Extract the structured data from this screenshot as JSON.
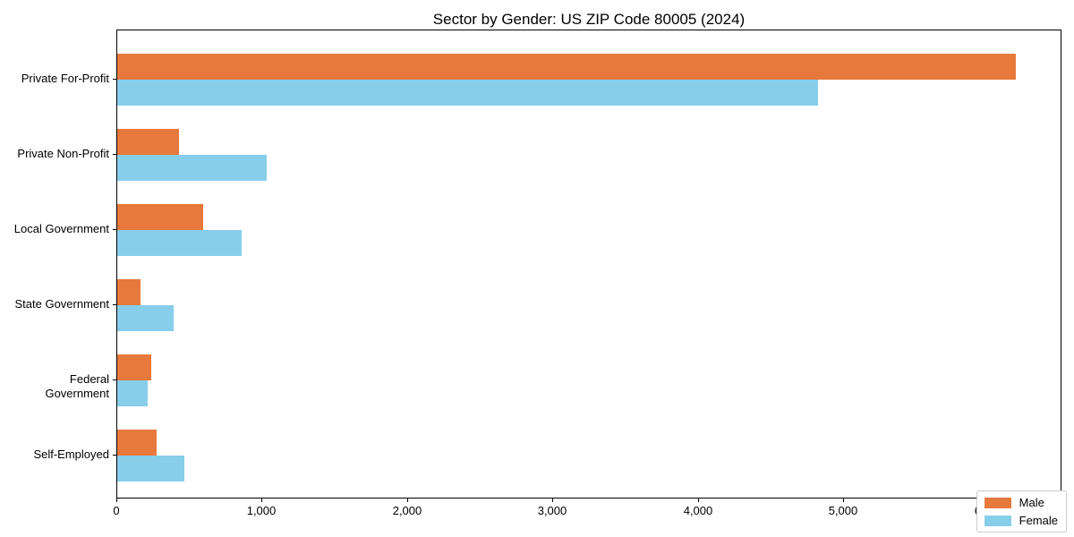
{
  "chart_data": {
    "type": "bar",
    "orientation": "horizontal",
    "title": "Sector by Gender: US ZIP Code 80005 (2024)",
    "xlabel": "",
    "ylabel": "",
    "categories": [
      "Private For-Profit",
      "Private Non-Profit",
      "Local Government",
      "State Government",
      "Federal Government",
      "Self-Employed"
    ],
    "series": [
      {
        "name": "Male",
        "color": "#e8793d",
        "values": [
          6190,
          425,
          590,
          160,
          235,
          270
        ]
      },
      {
        "name": "Female",
        "color": "#87ceeb",
        "values": [
          4830,
          1030,
          855,
          390,
          210,
          465
        ]
      }
    ],
    "xlim": [
      0,
      6500
    ],
    "x_tick_values": [
      0,
      1000,
      2000,
      3000,
      4000,
      5000,
      6000
    ],
    "x_tick_labels": [
      "0",
      "1,000",
      "2,000",
      "3,000",
      "4,000",
      "5,000",
      "6,000"
    ],
    "legend": {
      "position": "lower right",
      "entries": [
        "Male",
        "Female"
      ]
    },
    "grid": false,
    "background_color": "#ffffff",
    "axis_color": "#000000"
  }
}
